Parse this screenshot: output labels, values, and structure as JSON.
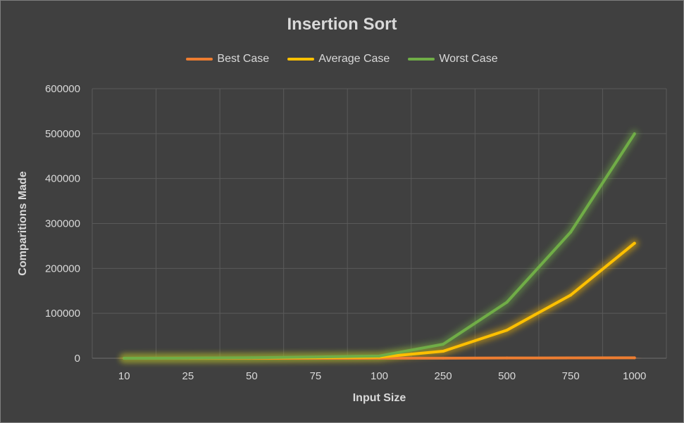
{
  "chart_data": {
    "type": "line",
    "title": "Insertion Sort",
    "xlabel": "Input Size",
    "ylabel": "Comparitions Made",
    "categories": [
      "10",
      "25",
      "50",
      "75",
      "100",
      "250",
      "500",
      "750",
      "1000"
    ],
    "ylim": [
      0,
      600000
    ],
    "yticks": [
      "0",
      "100000",
      "200000",
      "300000",
      "400000",
      "500000",
      "600000"
    ],
    "grid": true,
    "legend_position": "top",
    "series": [
      {
        "name": "Best Case",
        "color": "#ed7d31",
        "values": [
          9,
          24,
          49,
          74,
          99,
          249,
          499,
          749,
          999
        ]
      },
      {
        "name": "Average Case",
        "color": "#ffc000",
        "values": [
          25,
          160,
          640,
          1420,
          2500,
          15600,
          62500,
          140600,
          256000
        ]
      },
      {
        "name": "Worst Case",
        "color": "#70ad47",
        "values": [
          45,
          300,
          1225,
          2775,
          4950,
          31125,
          124750,
          280875,
          499500
        ]
      }
    ]
  }
}
